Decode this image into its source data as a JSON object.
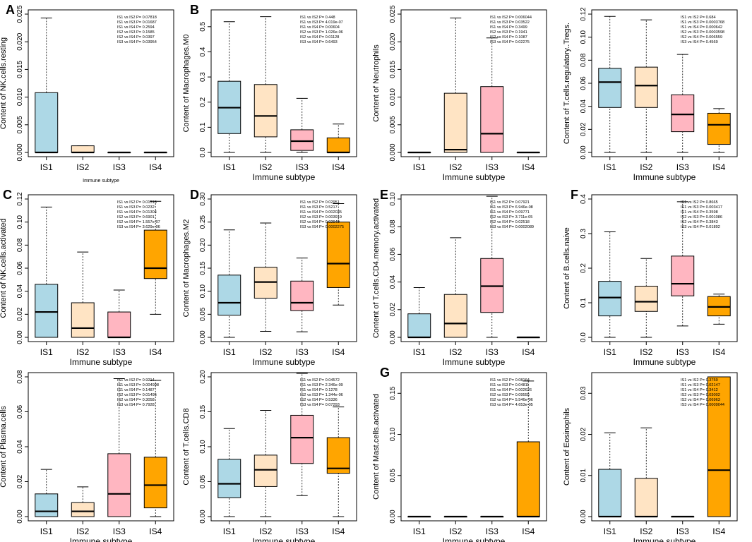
{
  "figure": {
    "colors": {
      "IS1": "#ADD8E6",
      "IS2": "#FFE4C4",
      "IS3": "#FFB6C1",
      "IS4": "#FFA500"
    }
  },
  "chart_data": [
    {
      "panel": "A",
      "type": "box",
      "ylabel": "Content of NK.cells.resting",
      "xlabel": "Immune subtype",
      "categories": [
        "IS1",
        "IS2",
        "IS3",
        "IS4"
      ],
      "ylim": [
        0,
        0.025
      ],
      "yticks": [
        "0.000",
        "0.005",
        "0.010",
        "0.015",
        "0.020",
        "0.025"
      ],
      "ytick_values": [
        0,
        0.005,
        0.01,
        0.015,
        0.02,
        0.025
      ],
      "boxes": [
        {
          "min": 0,
          "q1": 0,
          "median": 0,
          "q3": 0.0108,
          "max": 0.0243
        },
        {
          "min": 0,
          "q1": 0,
          "median": 0,
          "q3": 0.0012,
          "max": 0.0012
        },
        {
          "min": 0,
          "q1": 0,
          "median": 0,
          "q3": 0,
          "max": 0
        },
        {
          "min": 0,
          "q1": 0,
          "median": 0,
          "q3": 0,
          "max": 0
        }
      ],
      "stats": [
        "IS1 vs IS2 P= 0.07818",
        "IS1 vs IS3 P= 0.01687",
        "IS1 vs IS4 P= 0.2594",
        "IS2 vs IS3 P= 0.1585",
        "IS2 vs IS4 P= 0.0397",
        "IS3 vs IS4 P= 0.03954"
      ]
    },
    {
      "panel": "B",
      "type": "box",
      "ylabel": "Content of Macrophages.M0",
      "xlabel": "Immune subtype",
      "categories": [
        "IS1",
        "IS2",
        "IS3",
        "IS4"
      ],
      "ylim": [
        0,
        0.55
      ],
      "yticks": [
        "0.0",
        "0.1",
        "0.2",
        "0.3",
        "0.4",
        "0.5"
      ],
      "ytick_values": [
        0,
        0.1,
        0.2,
        0.3,
        0.4,
        0.5
      ],
      "boxes": [
        {
          "min": 0,
          "q1": 0.075,
          "median": 0.178,
          "q3": 0.283,
          "max": 0.52
        },
        {
          "min": 0,
          "q1": 0.062,
          "median": 0.145,
          "q3": 0.27,
          "max": 0.54
        },
        {
          "min": 0,
          "q1": 0.008,
          "median": 0.045,
          "q3": 0.09,
          "max": 0.215
        },
        {
          "min": 0,
          "q1": 0,
          "median": 0,
          "q3": 0.058,
          "max": 0.113
        }
      ],
      "stats": [
        "IS1 vs IS2 P= 0.448",
        "IS1 vs IS3 P= 4.019e-07",
        "IS1 vs IS4 P= 0.00604",
        "IS2 vs IS3 P= 1.026e-06",
        "IS2 vs IS4 P= 0.01128",
        "IS3 vs IS4 P= 0.6493"
      ]
    },
    {
      "panel": "",
      "type": "box",
      "ylabel": "Content of Neutrophils",
      "xlabel": "Immune subtype",
      "categories": [
        "IS1",
        "IS2",
        "IS3",
        "IS4"
      ],
      "ylim": [
        0,
        0.025
      ],
      "yticks": [
        "0.000",
        "0.005",
        "0.010",
        "0.015",
        "0.020",
        "0.025"
      ],
      "ytick_values": [
        0,
        0.005,
        0.01,
        0.015,
        0.02,
        0.025
      ],
      "boxes": [
        {
          "min": 0,
          "q1": 0,
          "median": 0,
          "q3": 0,
          "max": 0
        },
        {
          "min": 0,
          "q1": 0,
          "median": 0.0005,
          "q3": 0.0107,
          "max": 0.0243
        },
        {
          "min": 0,
          "q1": 0,
          "median": 0.0034,
          "q3": 0.0119,
          "max": 0.0207
        },
        {
          "min": 0,
          "q1": 0,
          "median": 0,
          "q3": 0,
          "max": 0
        }
      ],
      "stats": [
        "IS1 vs IS2 P= 0.006044",
        "IS1 vs IS3 P= 0.03522",
        "IS1 vs IS4 P= 0.3499",
        "IS2 vs IS3 P= 0.1941",
        "IS2 vs IS4 P= 0.1087",
        "IS3 vs IS4 P= 0.02275"
      ]
    },
    {
      "panel": "",
      "type": "box",
      "ylabel": "Content of T.cells.regulatory..Tregs.",
      "xlabel": "Immune subtype",
      "categories": [
        "IS1",
        "IS2",
        "IS3",
        "IS4"
      ],
      "ylim": [
        0,
        0.12
      ],
      "yticks": [
        "0.00",
        "0.02",
        "0.04",
        "0.06",
        "0.08",
        "0.10",
        "0.12"
      ],
      "ytick_values": [
        0,
        0.02,
        0.04,
        0.06,
        0.08,
        0.1,
        0.12
      ],
      "boxes": [
        {
          "min": 0,
          "q1": 0.039,
          "median": 0.061,
          "q3": 0.073,
          "max": 0.118
        },
        {
          "min": 0,
          "q1": 0.039,
          "median": 0.058,
          "q3": 0.074,
          "max": 0.115
        },
        {
          "min": 0,
          "q1": 0.018,
          "median": 0.033,
          "q3": 0.05,
          "max": 0.085
        },
        {
          "min": 0,
          "q1": 0.007,
          "median": 0.024,
          "q3": 0.034,
          "max": 0.038
        }
      ],
      "stats": [
        "IS1 vs IS2 P= 0.684",
        "IS1 vs IS3 P= 0.0003768",
        "IS1 vs IS4 P= 0.000642",
        "IS2 vs IS3 P= 0.0003598",
        "IS2 vs IS4 P= 0.006559",
        "IS3 vs IS4 P= 0.4569"
      ]
    },
    {
      "panel": "C",
      "type": "box",
      "ylabel": "Content of NK.cells.activated",
      "xlabel": "Immune subtype",
      "categories": [
        "IS1",
        "IS2",
        "IS3",
        "IS4"
      ],
      "ylim": [
        0,
        0.12
      ],
      "yticks": [
        "0.00",
        "0.02",
        "0.04",
        "0.06",
        "0.08",
        "0.10",
        "0.12"
      ],
      "ytick_values": [
        0,
        0.02,
        0.04,
        0.06,
        0.08,
        0.1,
        0.12
      ],
      "boxes": [
        {
          "min": 0,
          "q1": 0,
          "median": 0.022,
          "q3": 0.046,
          "max": 0.113
        },
        {
          "min": 0,
          "q1": 0,
          "median": 0.008,
          "q3": 0.03,
          "max": 0.074
        },
        {
          "min": 0,
          "q1": 0,
          "median": 0,
          "q3": 0.022,
          "max": 0.041
        },
        {
          "min": 0.02,
          "q1": 0.051,
          "median": 0.06,
          "q3": 0.093,
          "max": 0.118
        }
      ],
      "stats": [
        "IS1 vs IS2 P= 0.01516",
        "IS1 vs IS3 P= 0.0232",
        "IS1 vs IS4 P= 0.01304",
        "IS2 vs IS3 P= 0.6901",
        "IS2 vs IS4 P= 1.557e-07",
        "IS3 vs IS4 P= 3.629e-06"
      ]
    },
    {
      "panel": "D",
      "type": "box",
      "ylabel": "Content of Macrophages.M2",
      "xlabel": "Immune subtype",
      "categories": [
        "IS1",
        "IS2",
        "IS3",
        "IS4"
      ],
      "ylim": [
        0,
        0.3
      ],
      "yticks": [
        "0.00",
        "0.05",
        "0.10",
        "0.15",
        "0.20",
        "0.25",
        "0.30"
      ],
      "ytick_values": [
        0,
        0.05,
        0.1,
        0.15,
        0.2,
        0.25,
        0.3
      ],
      "boxes": [
        {
          "min": 0,
          "q1": 0.048,
          "median": 0.075,
          "q3": 0.135,
          "max": 0.233
        },
        {
          "min": 0.013,
          "q1": 0.085,
          "median": 0.12,
          "q3": 0.152,
          "max": 0.248
        },
        {
          "min": 0.012,
          "q1": 0.058,
          "median": 0.075,
          "q3": 0.122,
          "max": 0.172
        },
        {
          "min": 0.07,
          "q1": 0.108,
          "median": 0.16,
          "q3": 0.25,
          "max": 0.29
        }
      ],
      "stats": [
        "IS1 vs IS2 P= 0.02951",
        "IS1 vs IS3 P= 0.5217",
        "IS1 vs IS4 P= 0.002035",
        "IS2 vs IS3 P= 0.003919",
        "IS2 vs IS4 P= 0.02949",
        "IS3 vs IS4 P= 0.0002275"
      ]
    },
    {
      "panel": "E",
      "type": "box",
      "ylabel": "Content of T.cells.CD4.memory.activated",
      "xlabel": "Immune subtype",
      "categories": [
        "IS1",
        "IS2",
        "IS3",
        "IS4"
      ],
      "ylim": [
        0,
        0.1
      ],
      "yticks": [
        "0.00",
        "0.02",
        "0.04",
        "0.06",
        "0.08",
        "0.10"
      ],
      "ytick_values": [
        0,
        0.02,
        0.04,
        0.06,
        0.08,
        0.1
      ],
      "boxes": [
        {
          "min": 0,
          "q1": 0,
          "median": 0,
          "q3": 0.017,
          "max": 0.036
        },
        {
          "min": 0,
          "q1": 0,
          "median": 0.01,
          "q3": 0.031,
          "max": 0.072
        },
        {
          "min": 0,
          "q1": 0.018,
          "median": 0.037,
          "q3": 0.057,
          "max": 0.102
        },
        {
          "min": 0,
          "q1": 0,
          "median": 0,
          "q3": 0,
          "max": 0
        }
      ],
      "stats": [
        "IS1 vs IS2 P= 0.07921",
        "IS1 vs IS3 P= 6.946e-08",
        "IS1 vs IS4 P= 0.09771",
        "IS2 vs IS3 P= 3.711e-05",
        "IS2 vs IS4 P= 0.02518",
        "IS3 vs IS4 P= 0.0002089"
      ]
    },
    {
      "panel": "F",
      "type": "box",
      "ylabel": "Content of B.cells.naive",
      "xlabel": "Immune subtype",
      "categories": [
        "IS1",
        "IS2",
        "IS3",
        "IS4"
      ],
      "ylim": [
        0,
        0.4
      ],
      "yticks": [
        "0.0",
        "0.1",
        "0.2",
        "0.3",
        "0.4"
      ],
      "ytick_values": [
        0,
        0.1,
        0.2,
        0.3,
        0.4
      ],
      "boxes": [
        {
          "min": 0,
          "q1": 0.062,
          "median": 0.115,
          "q3": 0.162,
          "max": 0.305
        },
        {
          "min": 0,
          "q1": 0.075,
          "median": 0.103,
          "q3": 0.148,
          "max": 0.228
        },
        {
          "min": 0.033,
          "q1": 0.12,
          "median": 0.155,
          "q3": 0.235,
          "max": 0.392
        },
        {
          "min": 0.038,
          "q1": 0.062,
          "median": 0.088,
          "q3": 0.118,
          "max": 0.125
        }
      ],
      "stats": [
        "IS1 vs IS2 P= 0.8665",
        "IS1 vs IS3 P= 0.003417",
        "IS1 vs IS4 P= 0.3598",
        "IS2 vs IS3 P= 0.001086",
        "IS2 vs IS4 P= 0.3843",
        "IS3 vs IS4 P= 0.01892"
      ]
    },
    {
      "panel": "",
      "type": "box",
      "ylabel": "Content of Plasma.cells",
      "xlabel": "Immune subtype",
      "categories": [
        "IS1",
        "IS2",
        "IS3",
        "IS4"
      ],
      "ylim": [
        0,
        0.08
      ],
      "yticks": [
        "0.00",
        "0.02",
        "0.04",
        "0.06",
        "0.08"
      ],
      "ytick_values": [
        0,
        0.02,
        0.04,
        0.06,
        0.08
      ],
      "boxes": [
        {
          "min": 0,
          "q1": 0,
          "median": 0.003,
          "q3": 0.013,
          "max": 0.027
        },
        {
          "min": 0,
          "q1": 0,
          "median": 0.003,
          "q3": 0.008,
          "max": 0.017
        },
        {
          "min": 0,
          "q1": 0,
          "median": 0.013,
          "q3": 0.036,
          "max": 0.079
        },
        {
          "min": 0,
          "q1": 0.005,
          "median": 0.018,
          "q3": 0.034,
          "max": 0.078
        }
      ],
      "stats": [
        "IS1 vs IS2 P= 0.9214",
        "IS1 vs IS3 P= 0.004998",
        "IS1 vs IS4 P= 0.1487",
        "IS2 vs IS3 P= 0.01495",
        "IS2 vs IS4 P= 0.3058",
        "IS3 vs IS4 P= 0.7928"
      ]
    },
    {
      "panel": "",
      "type": "box",
      "ylabel": "Content of T.cells.CD8",
      "xlabel": "Immune subtype",
      "categories": [
        "IS1",
        "IS2",
        "IS3",
        "IS4"
      ],
      "ylim": [
        0,
        0.2
      ],
      "yticks": [
        "0.00",
        "0.05",
        "0.10",
        "0.15",
        "0.20"
      ],
      "ytick_values": [
        0,
        0.05,
        0.1,
        0.15,
        0.2
      ],
      "boxes": [
        {
          "min": 0,
          "q1": 0.027,
          "median": 0.047,
          "q3": 0.082,
          "max": 0.126
        },
        {
          "min": 0,
          "q1": 0.043,
          "median": 0.067,
          "q3": 0.088,
          "max": 0.152
        },
        {
          "min": 0.03,
          "q1": 0.076,
          "median": 0.113,
          "q3": 0.145,
          "max": 0.205
        },
        {
          "min": 0,
          "q1": 0.062,
          "median": 0.069,
          "q3": 0.113,
          "max": 0.157
        }
      ],
      "stats": [
        "IS1 vs IS2 P= 0.04572",
        "IS1 vs IS3 P= 2.346e-09",
        "IS1 vs IS4 P= 0.1278",
        "IS2 vs IS3 P= 1.344e-06",
        "IS2 vs IS4 P= 0.5336",
        "IS3 vs IS4 P= 0.07293"
      ]
    },
    {
      "panel": "G",
      "type": "box",
      "ylabel": "Content of Mast.cells.activated",
      "xlabel": "Immune subtype",
      "categories": [
        "IS1",
        "IS2",
        "IS3",
        "IS4"
      ],
      "ylim": [
        0,
        0.17
      ],
      "yticks": [
        "0.00",
        "0.05",
        "0.10",
        "0.15"
      ],
      "ytick_values": [
        0,
        0.05,
        0.1,
        0.15
      ],
      "boxes": [
        {
          "min": 0,
          "q1": 0,
          "median": 0,
          "q3": 0,
          "max": 0
        },
        {
          "min": 0,
          "q1": 0,
          "median": 0,
          "q3": 0,
          "max": 0
        },
        {
          "min": 0,
          "q1": 0,
          "median": 0,
          "q3": 0,
          "max": 0
        },
        {
          "min": 0,
          "q1": 0,
          "median": 0,
          "q3": 0.091,
          "max": 0.165
        }
      ],
      "stats": [
        "IS1 vs IS2 P= 0.08164",
        "IS1 vs IS3 P= 0.04811",
        "IS1 vs IS4 P= 0.002626",
        "IS2 vs IS3 P= 0.09555",
        "IS2 vs IS4 P= 5.546e-06",
        "IS3 vs IS4 P= 4.653e-05"
      ]
    },
    {
      "panel": "",
      "type": "box",
      "ylabel": "Content of Eosinophils",
      "xlabel": "Immune subtype",
      "categories": [
        "IS1",
        "IS2",
        "IS3",
        "IS4"
      ],
      "ylim": [
        0,
        0.034
      ],
      "yticks": [
        "0.00",
        "0.01",
        "0.02",
        "0.03"
      ],
      "ytick_values": [
        0,
        0.01,
        0.02,
        0.03
      ],
      "boxes": [
        {
          "min": 0,
          "q1": 0,
          "median": 0,
          "q3": 0.0115,
          "max": 0.0204
        },
        {
          "min": 0,
          "q1": 0,
          "median": 0,
          "q3": 0.0093,
          "max": 0.0216
        },
        {
          "min": 0,
          "q1": 0,
          "median": 0,
          "q3": 0,
          "max": 0
        },
        {
          "min": 0,
          "q1": 0,
          "median": 0.0113,
          "q3": 0.034,
          "max": 0.034
        }
      ],
      "stats": [
        "IS1 vs IS2 P= 0.3759",
        "IS1 vs IS3 P= 0.02147",
        "IS1 vs IS4 P= 0.3412",
        "IS2 vs IS3 P= 0.03002",
        "IS2 vs IS4 P= 0.06963",
        "IS3 vs IS4 P= 0.0009044"
      ]
    }
  ]
}
